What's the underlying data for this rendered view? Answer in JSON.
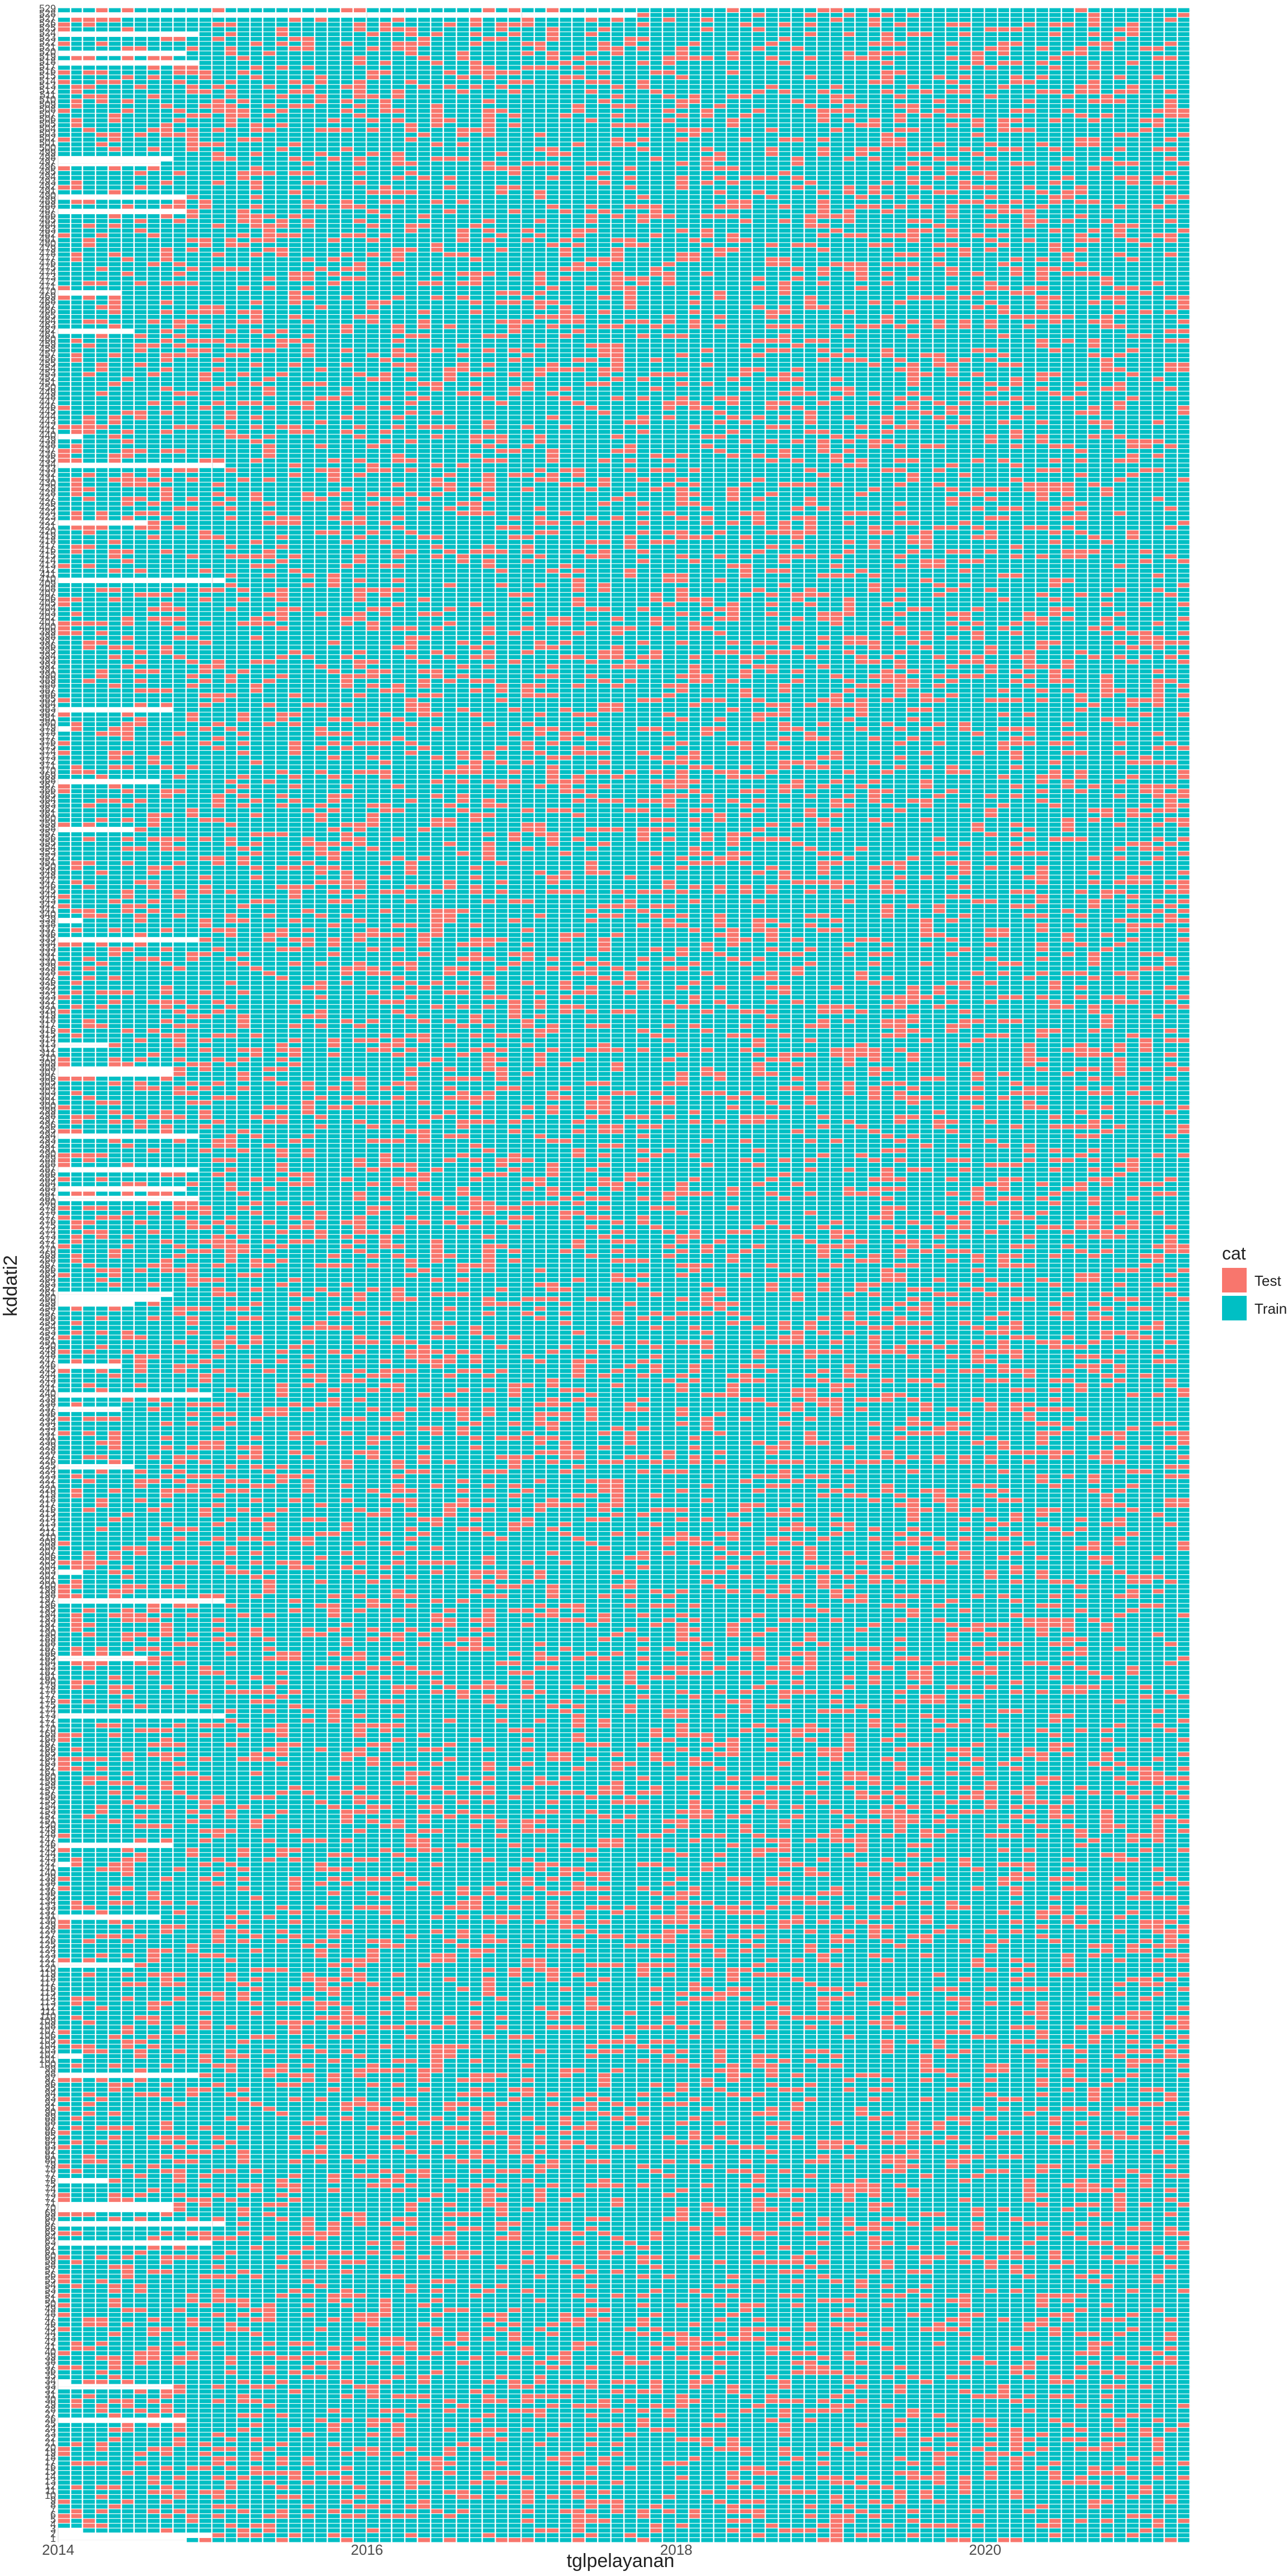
{
  "chart_data": {
    "type": "heatmap",
    "title": "",
    "xlabel": "tglpelayanan",
    "ylabel": "kddati2",
    "x_axis": {
      "type": "date",
      "ticks": [
        "2014",
        "2016",
        "2018",
        "2020"
      ],
      "range": [
        "2014-01-01",
        "2021-05-01"
      ],
      "cell_interval": "month"
    },
    "y_axis": {
      "type": "category",
      "range": [
        1,
        529
      ],
      "top_label": "528"
    },
    "grid": true,
    "legend": {
      "title": "cat",
      "placement": "right",
      "entries": [
        {
          "label": "Test",
          "color": "#F8766D"
        },
        {
          "label": "Train",
          "color": "#00BFC4"
        }
      ]
    },
    "series": [
      {
        "name": "Test",
        "color": "#F8766D"
      },
      {
        "name": "Train",
        "color": "#00BFC4"
      }
    ],
    "test_share_estimate": 0.22,
    "rows_with_late_start": [
      {
        "row": 528,
        "start": "2017-10-01"
      },
      {
        "row": 527,
        "start": "2014-01-01"
      },
      {
        "row": 470,
        "start": "2014-06-01"
      }
    ]
  }
}
